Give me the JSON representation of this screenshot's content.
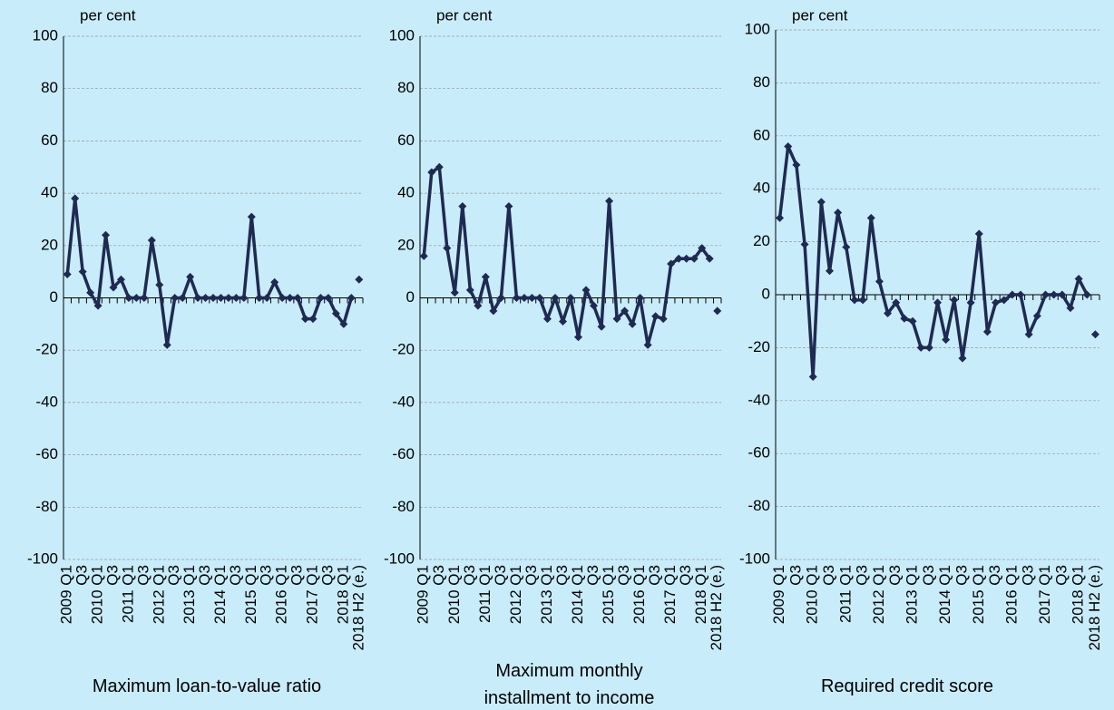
{
  "chart_data": [
    {
      "type": "line",
      "title": "Maximum loan-to-value ratio",
      "ylabel": "per cent",
      "categories": [
        "2009 Q1",
        null,
        "Q3",
        null,
        "2010 Q1",
        null,
        "Q3",
        null,
        "2011 Q1",
        null,
        "Q3",
        null,
        "2012 Q1",
        null,
        "Q3",
        null,
        "2013 Q1",
        null,
        "Q3",
        null,
        "2014 Q1",
        null,
        "Q3",
        null,
        "2015 Q1",
        null,
        "Q3",
        null,
        "2016 Q1",
        null,
        "Q3",
        null,
        "2017 Q1",
        null,
        "Q3",
        null,
        "2018 Q1",
        null,
        "2018 H2 (e.)"
      ],
      "values": [
        9,
        38,
        10,
        2,
        -3,
        24,
        4,
        7,
        0,
        0,
        0,
        22,
        5,
        -18,
        0,
        0,
        8,
        0,
        0,
        0,
        0,
        0,
        0,
        0,
        31,
        0,
        0,
        6,
        0,
        0,
        0,
        -8,
        -8,
        0,
        0,
        -6,
        -10,
        0,
        null
      ],
      "estimate_values": [
        null,
        null,
        null,
        null,
        null,
        null,
        null,
        null,
        null,
        null,
        null,
        null,
        null,
        null,
        null,
        null,
        null,
        null,
        null,
        null,
        null,
        null,
        null,
        null,
        null,
        null,
        null,
        null,
        null,
        null,
        null,
        null,
        null,
        null,
        null,
        null,
        null,
        null,
        7
      ],
      "color": "#1f2a52",
      "ylim": [
        -100,
        100
      ],
      "yticks": [
        -100,
        -80,
        -60,
        -40,
        -20,
        0,
        20,
        40,
        60,
        80,
        100
      ],
      "grid": true
    },
    {
      "type": "line",
      "title": "Maximum monthly installment to income",
      "ylabel": "per cent",
      "categories": [
        "2009 Q1",
        null,
        "Q3",
        null,
        "2010 Q1",
        null,
        "Q3",
        null,
        "2011 Q1",
        null,
        "Q3",
        null,
        "2012 Q1",
        null,
        "Q3",
        null,
        "2013 Q1",
        null,
        "Q3",
        null,
        "2014 Q1",
        null,
        "Q3",
        null,
        "2015 Q1",
        null,
        "Q3",
        null,
        "2016 Q1",
        null,
        "Q3",
        null,
        "2017 Q1",
        null,
        "Q3",
        null,
        "2018 Q1",
        null,
        "2018 H2 (e.)"
      ],
      "values": [
        16,
        48,
        50,
        19,
        2,
        35,
        3,
        -3,
        8,
        -5,
        0,
        35,
        0,
        0,
        0,
        0,
        -8,
        0,
        -9,
        0,
        -15,
        3,
        -3,
        -11,
        37,
        -8,
        -5,
        -10,
        0,
        -18,
        -7,
        -8,
        13,
        15,
        15,
        15,
        19,
        15,
        null
      ],
      "estimate_values": [
        null,
        null,
        null,
        null,
        null,
        null,
        null,
        null,
        null,
        null,
        null,
        null,
        null,
        null,
        null,
        null,
        null,
        null,
        null,
        null,
        null,
        null,
        null,
        null,
        null,
        null,
        null,
        null,
        null,
        null,
        null,
        null,
        null,
        null,
        null,
        null,
        null,
        null,
        -5
      ],
      "color": "#1f2a52",
      "ylim": [
        -100,
        100
      ],
      "yticks": [
        -100,
        -80,
        -60,
        -40,
        -20,
        0,
        20,
        40,
        60,
        80,
        100
      ],
      "grid": true
    },
    {
      "type": "line",
      "title": "Required credit score",
      "ylabel": "per cent",
      "categories": [
        "2009 Q1",
        null,
        "Q3",
        null,
        "2010 Q1",
        null,
        "Q3",
        null,
        "2011 Q1",
        null,
        "Q3",
        null,
        "2012 Q1",
        null,
        "Q3",
        null,
        "2013 Q1",
        null,
        "Q3",
        null,
        "2014 Q1",
        null,
        "Q3",
        null,
        "2015 Q1",
        null,
        "Q3",
        null,
        "2016 Q1",
        null,
        "Q3",
        null,
        "2017 Q1",
        null,
        "Q3",
        null,
        "2018 Q1",
        null,
        "2018 H2 (e.)"
      ],
      "values": [
        29,
        56,
        49,
        19,
        -31,
        35,
        9,
        31,
        18,
        -2,
        -2,
        29,
        5,
        -7,
        -3,
        -9,
        -10,
        -20,
        -20,
        -3,
        -17,
        -2,
        -24,
        -3,
        23,
        -14,
        -3,
        -2,
        0,
        0,
        -15,
        -8,
        0,
        0,
        0,
        -5,
        6,
        0,
        null
      ],
      "estimate_values": [
        null,
        null,
        null,
        null,
        null,
        null,
        null,
        null,
        null,
        null,
        null,
        null,
        null,
        null,
        null,
        null,
        null,
        null,
        null,
        null,
        null,
        null,
        null,
        null,
        null,
        null,
        null,
        null,
        null,
        null,
        null,
        null,
        null,
        null,
        null,
        null,
        null,
        null,
        -15
      ],
      "color": "#1f2a52",
      "ylim": [
        -100,
        100
      ],
      "yticks": [
        -100,
        -80,
        -60,
        -40,
        -20,
        0,
        20,
        40,
        60,
        80,
        100
      ],
      "grid": true
    }
  ]
}
